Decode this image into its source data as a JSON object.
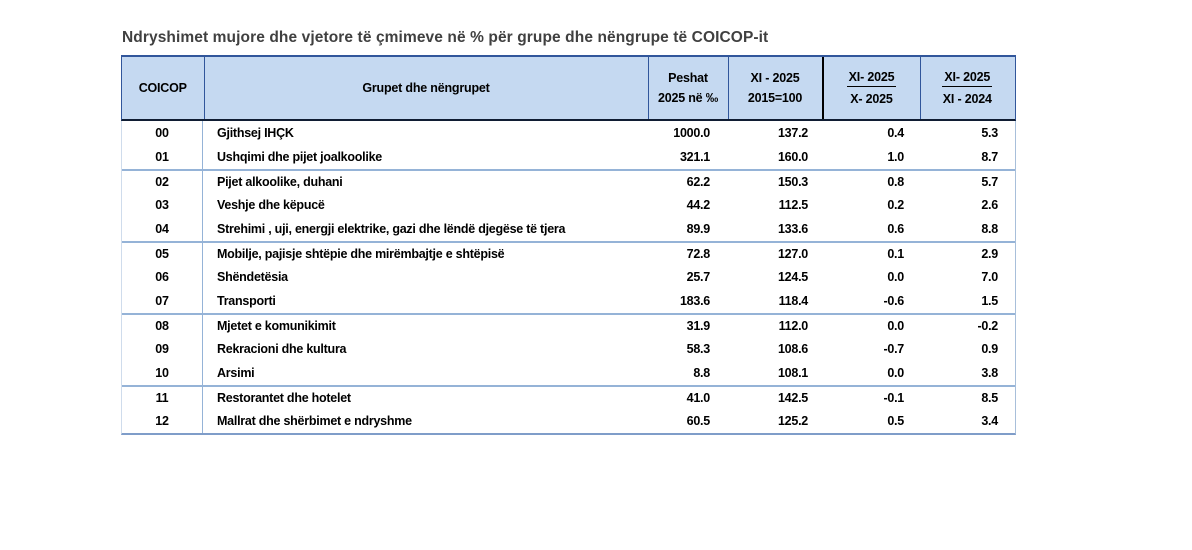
{
  "title": "Ndryshimet mujore dhe vjetore të çmimeve në % për grupe dhe nëngrupe të COICOP-it",
  "table": {
    "headers": {
      "coicop": "COICOP",
      "groups": "Grupet dhe nëngrupet",
      "weight_line1": "Peshat",
      "weight_line2": "2025 në ‰",
      "index_line1": "XI - 2025",
      "index_line2": "2015=100",
      "monthly_line1": "XI- 2025",
      "monthly_line2": "X- 2025",
      "annual_line1": "XI- 2025",
      "annual_line2": "XI - 2024"
    },
    "rows": [
      {
        "code": "00",
        "name": "Gjithsej IHÇK",
        "weight": "1000.0",
        "index": "137.2",
        "monthly": "0.4",
        "annual": "5.3"
      },
      {
        "code": "01",
        "name": "Ushqimi dhe pijet joalkoolike",
        "weight": "321.1",
        "index": "160.0",
        "monthly": "1.0",
        "annual": "8.7"
      },
      {
        "code": "02",
        "name": "Pijet alkoolike, duhani",
        "weight": "62.2",
        "index": "150.3",
        "monthly": "0.8",
        "annual": "5.7"
      },
      {
        "code": "03",
        "name": "Veshje dhe këpucë",
        "weight": "44.2",
        "index": "112.5",
        "monthly": "0.2",
        "annual": "2.6"
      },
      {
        "code": "04",
        "name": "Strehimi , uji, energji elektrike, gazi dhe lëndë djegëse të tjera",
        "weight": "89.9",
        "index": "133.6",
        "monthly": "0.6",
        "annual": "8.8"
      },
      {
        "code": "05",
        "name": "Mobilje, pajisje shtëpie dhe mirëmbajtje e shtëpisë",
        "weight": "72.8",
        "index": "127.0",
        "monthly": "0.1",
        "annual": "2.9"
      },
      {
        "code": "06",
        "name": "Shëndetësia",
        "weight": "25.7",
        "index": "124.5",
        "monthly": "0.0",
        "annual": "7.0"
      },
      {
        "code": "07",
        "name": "Transporti",
        "weight": "183.6",
        "index": "118.4",
        "monthly": "-0.6",
        "annual": "1.5"
      },
      {
        "code": "08",
        "name": "Mjetet e komunikimit",
        "weight": "31.9",
        "index": "112.0",
        "monthly": "0.0",
        "annual": "-0.2"
      },
      {
        "code": "09",
        "name": "Rekracioni dhe kultura",
        "weight": "58.3",
        "index": "108.6",
        "monthly": "-0.7",
        "annual": "0.9"
      },
      {
        "code": "10",
        "name": "Arsimi",
        "weight": "8.8",
        "index": "108.1",
        "monthly": "0.0",
        "annual": "3.8"
      },
      {
        "code": "11",
        "name": "Restorantet dhe hotelet",
        "weight": "41.0",
        "index": "142.5",
        "monthly": "-0.1",
        "annual": "8.5"
      },
      {
        "code": "12",
        "name": "Mallrat dhe shërbimet e ndryshme",
        "weight": "60.5",
        "index": "125.2",
        "monthly": "0.5",
        "annual": "3.4"
      }
    ],
    "group_start_codes": [
      "02",
      "05",
      "08",
      "11"
    ]
  },
  "colors": {
    "header_bg": "#C5D9F1",
    "header_border_navy": "#31569B",
    "header_black_divider": "#000000",
    "header_bottom_border": "#101d33",
    "group_separator": "#95B3D7",
    "table_bottom_border": "#7F9DC9",
    "title_text": "#404040",
    "body_text": "#000000"
  }
}
